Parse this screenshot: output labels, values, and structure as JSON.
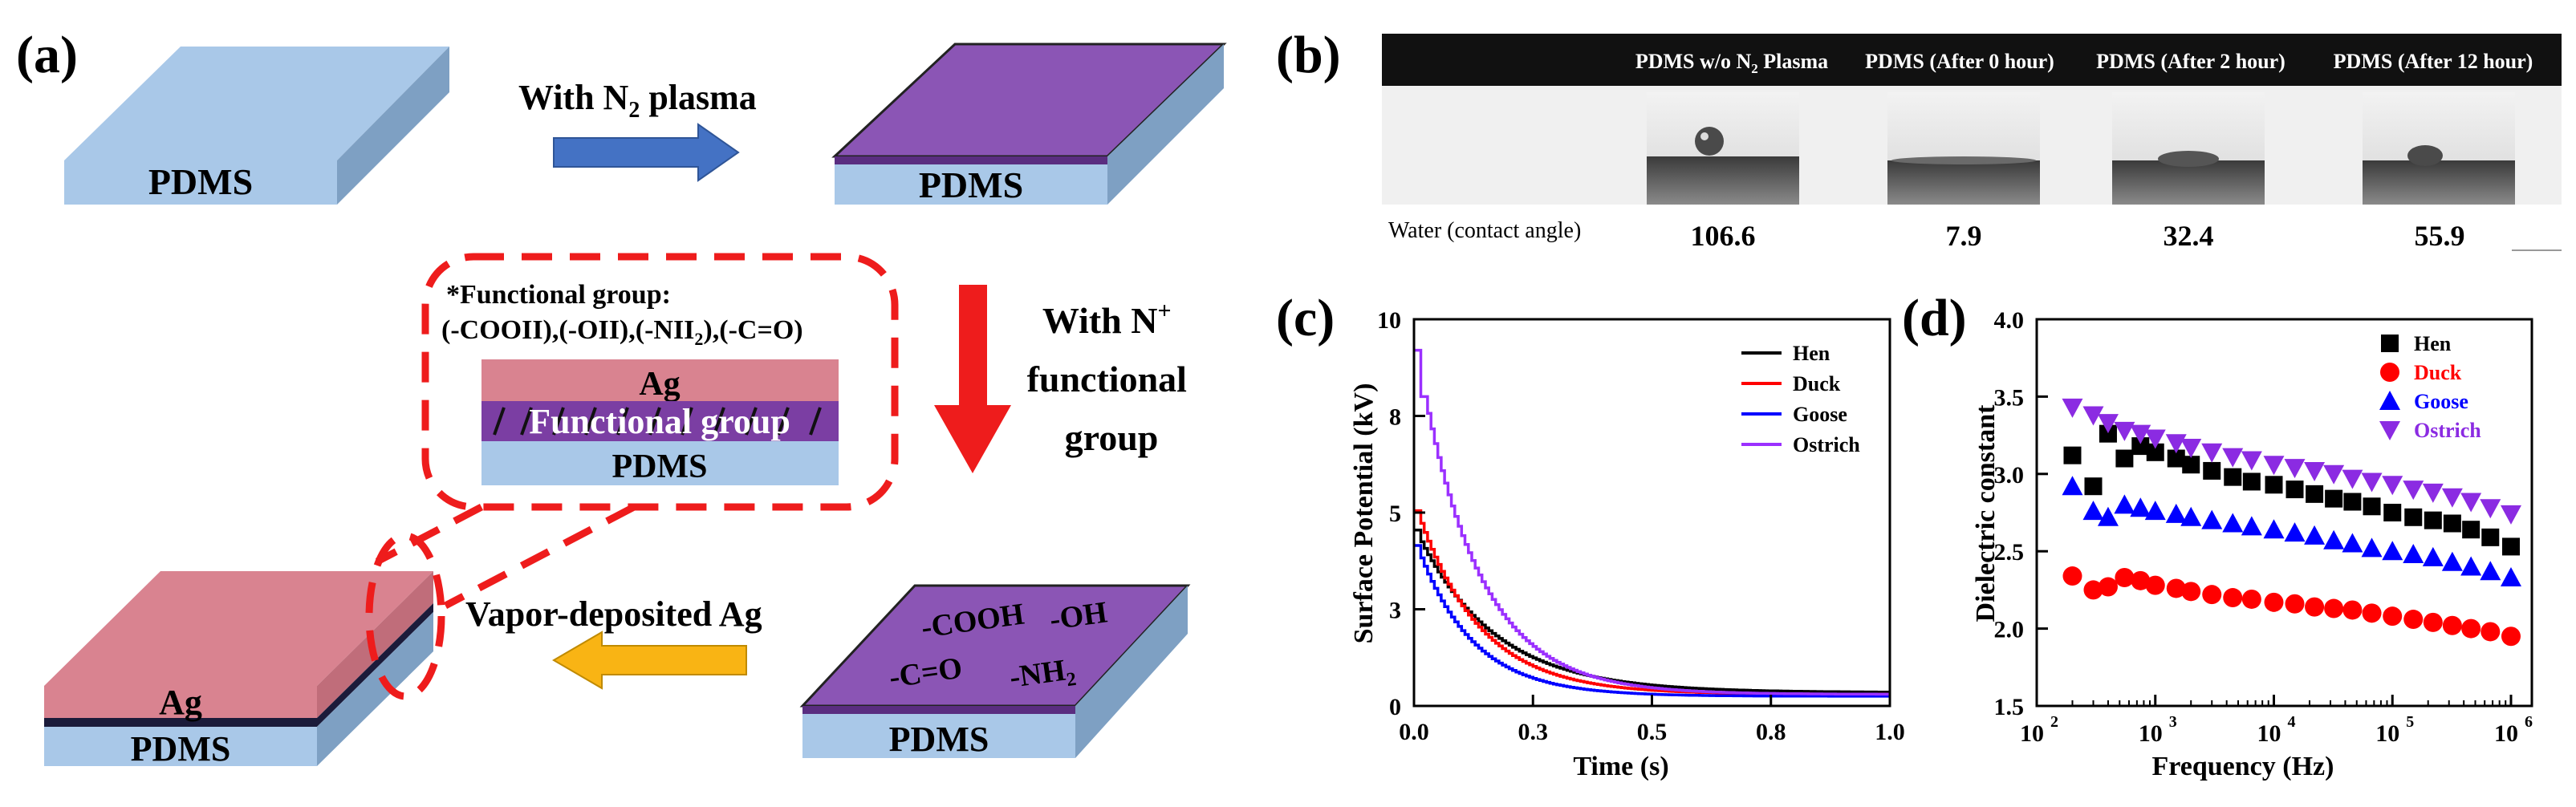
{
  "panel_a": {
    "label": "(a)",
    "pdms": "PDMS",
    "ag": "Ag",
    "step1": "With N",
    "step1_sub": "2",
    "step1_tail": " plasma",
    "step2_line1": "With N",
    "step2_sup": "+",
    "step2_line2": "functional",
    "step2_line3": "group",
    "step3": "Vapor-deposited Ag",
    "fg_title": "*Functional group:",
    "fg_list": "(-COOII),(-OII),(-NII",
    "fg_list_sub": "2",
    "fg_list_tail": "),(-C=O)",
    "fg_layer": "Functional group",
    "chem_cooh": "-COOH",
    "chem_oh": "-OH",
    "chem_co": "-C=O",
    "chem_nh": "-NH",
    "chem_nh_sub": "2",
    "colors": {
      "pdms": "#a9c8e8",
      "plasma": "#8b55b5",
      "ag": "#d98390",
      "arrow_blue": "#4472c4",
      "arrow_red": "#ee1c1c",
      "arrow_orange": "#f9b414",
      "dash": "#ee1c1c"
    }
  },
  "panel_b": {
    "label": "(b)",
    "headers": [
      "PDMS w/o N",
      "PDMS (After 0 hour)",
      "PDMS (After 2 hour)",
      "PDMS (After 12 hour)"
    ],
    "header0_sub": "2",
    "header0_tail": " Plasma",
    "row_label": "Water (contact angle)",
    "values": [
      "106.6",
      "7.9",
      "32.4",
      "55.9"
    ]
  },
  "chart_data": [
    {
      "label": "(c)",
      "type": "line",
      "xlabel": "Time (s)",
      "ylabel": "Surface Potential (kV)",
      "xlim": [
        0,
        1.0
      ],
      "ylim": [
        0,
        10
      ],
      "xticks": [
        "0.0",
        "0.3",
        "0.5",
        "0.8",
        "1.0"
      ],
      "xtick_values": [
        0,
        0.25,
        0.5,
        0.75,
        1.0
      ],
      "yticks": [
        "0",
        "3",
        "5",
        "8",
        "10"
      ],
      "ytick_values": [
        0,
        2.5,
        5,
        7.5,
        10
      ],
      "legend": "top-right",
      "series": [
        {
          "name": "Hen",
          "color": "#000000",
          "peak": 4.3,
          "tau": 0.16,
          "floor": 0.35
        },
        {
          "name": "Duck",
          "color": "#ff0000",
          "peak": 4.8,
          "tau": 0.13,
          "floor": 0.3
        },
        {
          "name": "Goose",
          "color": "#0000ff",
          "peak": 3.9,
          "tau": 0.115,
          "floor": 0.25
        },
        {
          "name": "Ostrich",
          "color": "#9b30ff",
          "peak": 8.6,
          "tau": 0.125,
          "floor": 0.3
        }
      ]
    },
    {
      "label": "(d)",
      "type": "scatter",
      "xlabel": "Frequency (Hz)",
      "ylabel": "Dielectric constant",
      "xscale": "log",
      "xlim": [
        100,
        1500000
      ],
      "ylim": [
        1.5,
        4.0
      ],
      "xticks": [
        "10",
        "10",
        "10",
        "10",
        "10"
      ],
      "xtick_exp": [
        "2",
        "3",
        "4",
        "5",
        "6"
      ],
      "xtick_values": [
        100,
        1000,
        10000,
        100000,
        1000000
      ],
      "yticks": [
        "1.5",
        "2.0",
        "2.5",
        "3.0",
        "3.5",
        "4.0"
      ],
      "ytick_values": [
        1.5,
        2.0,
        2.5,
        3.0,
        3.5,
        4.0
      ],
      "legend": "top-right",
      "x": [
        200,
        300,
        400,
        550,
        750,
        1000,
        1500,
        2000,
        3000,
        4500,
        6500,
        10000,
        15000,
        22000,
        32000,
        46000,
        67000,
        100000,
        150000,
        220000,
        320000,
        460000,
        670000,
        1000000
      ],
      "series": [
        {
          "name": "Hen",
          "marker": "square",
          "color": "#000000",
          "values": [
            3.12,
            2.92,
            3.26,
            3.1,
            3.18,
            3.14,
            3.1,
            3.06,
            3.02,
            2.98,
            2.95,
            2.93,
            2.9,
            2.87,
            2.84,
            2.82,
            2.79,
            2.75,
            2.72,
            2.7,
            2.68,
            2.64,
            2.59,
            2.53
          ]
        },
        {
          "name": "Duck",
          "marker": "circle",
          "color": "#ff0000",
          "values": [
            2.34,
            2.25,
            2.27,
            2.33,
            2.31,
            2.28,
            2.26,
            2.24,
            2.22,
            2.2,
            2.19,
            2.17,
            2.16,
            2.14,
            2.13,
            2.12,
            2.1,
            2.08,
            2.06,
            2.04,
            2.02,
            2.0,
            1.98,
            1.95
          ]
        },
        {
          "name": "Goose",
          "marker": "triangle",
          "color": "#0000ff",
          "values": [
            2.92,
            2.76,
            2.72,
            2.8,
            2.78,
            2.76,
            2.74,
            2.72,
            2.7,
            2.68,
            2.66,
            2.64,
            2.62,
            2.6,
            2.57,
            2.55,
            2.52,
            2.5,
            2.48,
            2.46,
            2.43,
            2.4,
            2.37,
            2.33
          ]
        },
        {
          "name": "Ostrich",
          "marker": "triangle-down",
          "color": "#8b2be2",
          "values": [
            3.43,
            3.38,
            3.33,
            3.28,
            3.26,
            3.23,
            3.2,
            3.17,
            3.14,
            3.11,
            3.09,
            3.06,
            3.04,
            3.02,
            3.0,
            2.97,
            2.95,
            2.93,
            2.9,
            2.88,
            2.85,
            2.82,
            2.78,
            2.74
          ]
        }
      ]
    }
  ]
}
